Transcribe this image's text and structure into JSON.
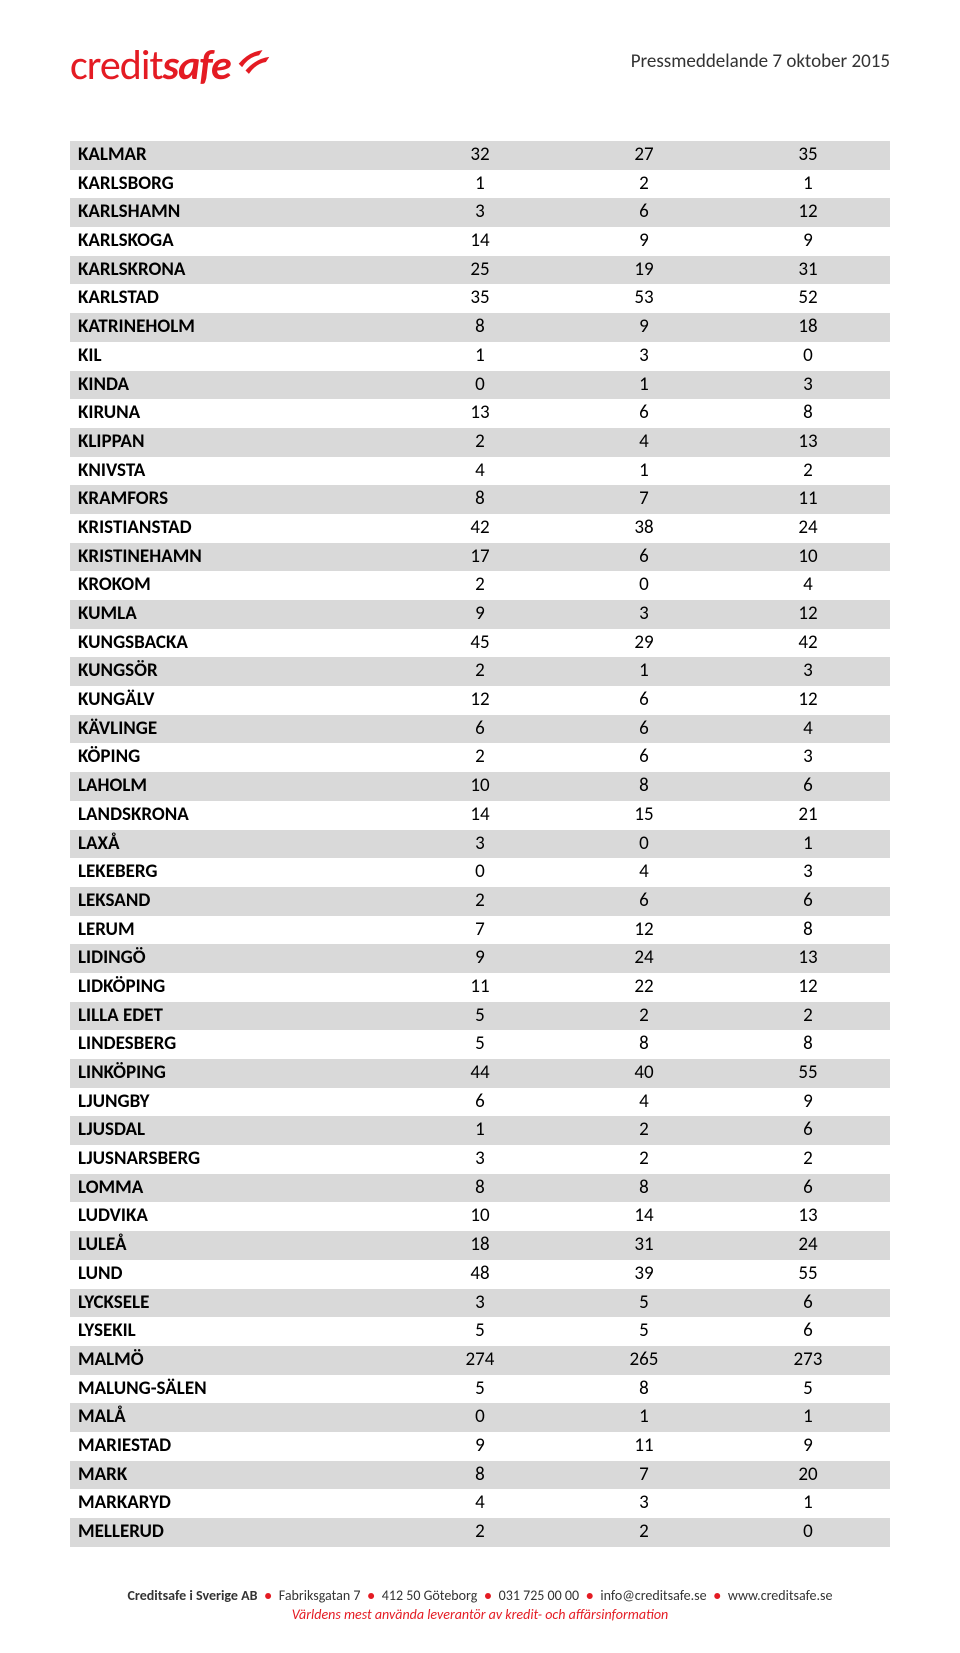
{
  "header": {
    "logo_part1": "credit",
    "logo_part2": "safe",
    "press_text": "Pressmeddelande 7 oktober 2015"
  },
  "table": {
    "row_odd_bg": "#d9d9d9",
    "row_even_bg": "#ffffff",
    "rows": [
      {
        "label": "KALMAR",
        "v1": "32",
        "v2": "27",
        "v3": "35"
      },
      {
        "label": "KARLSBORG",
        "v1": "1",
        "v2": "2",
        "v3": "1"
      },
      {
        "label": "KARLSHAMN",
        "v1": "3",
        "v2": "6",
        "v3": "12"
      },
      {
        "label": "KARLSKOGA",
        "v1": "14",
        "v2": "9",
        "v3": "9"
      },
      {
        "label": "KARLSKRONA",
        "v1": "25",
        "v2": "19",
        "v3": "31"
      },
      {
        "label": "KARLSTAD",
        "v1": "35",
        "v2": "53",
        "v3": "52"
      },
      {
        "label": "KATRINEHOLM",
        "v1": "8",
        "v2": "9",
        "v3": "18"
      },
      {
        "label": "KIL",
        "v1": "1",
        "v2": "3",
        "v3": "0"
      },
      {
        "label": "KINDA",
        "v1": "0",
        "v2": "1",
        "v3": "3"
      },
      {
        "label": "KIRUNA",
        "v1": "13",
        "v2": "6",
        "v3": "8"
      },
      {
        "label": "KLIPPAN",
        "v1": "2",
        "v2": "4",
        "v3": "13"
      },
      {
        "label": "KNIVSTA",
        "v1": "4",
        "v2": "1",
        "v3": "2"
      },
      {
        "label": "KRAMFORS",
        "v1": "8",
        "v2": "7",
        "v3": "11"
      },
      {
        "label": "KRISTIANSTAD",
        "v1": "42",
        "v2": "38",
        "v3": "24"
      },
      {
        "label": "KRISTINEHAMN",
        "v1": "17",
        "v2": "6",
        "v3": "10"
      },
      {
        "label": "KROKOM",
        "v1": "2",
        "v2": "0",
        "v3": "4"
      },
      {
        "label": "KUMLA",
        "v1": "9",
        "v2": "3",
        "v3": "12"
      },
      {
        "label": "KUNGSBACKA",
        "v1": "45",
        "v2": "29",
        "v3": "42"
      },
      {
        "label": "KUNGSÖR",
        "v1": "2",
        "v2": "1",
        "v3": "3"
      },
      {
        "label": "KUNGÄLV",
        "v1": "12",
        "v2": "6",
        "v3": "12"
      },
      {
        "label": "KÄVLINGE",
        "v1": "6",
        "v2": "6",
        "v3": "4"
      },
      {
        "label": "KÖPING",
        "v1": "2",
        "v2": "6",
        "v3": "3"
      },
      {
        "label": "LAHOLM",
        "v1": "10",
        "v2": "8",
        "v3": "6"
      },
      {
        "label": "LANDSKRONA",
        "v1": "14",
        "v2": "15",
        "v3": "21"
      },
      {
        "label": "LAXÅ",
        "v1": "3",
        "v2": "0",
        "v3": "1"
      },
      {
        "label": "LEKEBERG",
        "v1": "0",
        "v2": "4",
        "v3": "3"
      },
      {
        "label": "LEKSAND",
        "v1": "2",
        "v2": "6",
        "v3": "6"
      },
      {
        "label": "LERUM",
        "v1": "7",
        "v2": "12",
        "v3": "8"
      },
      {
        "label": "LIDINGÖ",
        "v1": "9",
        "v2": "24",
        "v3": "13"
      },
      {
        "label": "LIDKÖPING",
        "v1": "11",
        "v2": "22",
        "v3": "12"
      },
      {
        "label": "LILLA EDET",
        "v1": "5",
        "v2": "2",
        "v3": "2"
      },
      {
        "label": "LINDESBERG",
        "v1": "5",
        "v2": "8",
        "v3": "8"
      },
      {
        "label": "LINKÖPING",
        "v1": "44",
        "v2": "40",
        "v3": "55"
      },
      {
        "label": "LJUNGBY",
        "v1": "6",
        "v2": "4",
        "v3": "9"
      },
      {
        "label": "LJUSDAL",
        "v1": "1",
        "v2": "2",
        "v3": "6"
      },
      {
        "label": "LJUSNARSBERG",
        "v1": "3",
        "v2": "2",
        "v3": "2"
      },
      {
        "label": "LOMMA",
        "v1": "8",
        "v2": "8",
        "v3": "6"
      },
      {
        "label": "LUDVIKA",
        "v1": "10",
        "v2": "14",
        "v3": "13"
      },
      {
        "label": "LULEÅ",
        "v1": "18",
        "v2": "31",
        "v3": "24"
      },
      {
        "label": "LUND",
        "v1": "48",
        "v2": "39",
        "v3": "55"
      },
      {
        "label": "LYCKSELE",
        "v1": "3",
        "v2": "5",
        "v3": "6"
      },
      {
        "label": "LYSEKIL",
        "v1": "5",
        "v2": "5",
        "v3": "6"
      },
      {
        "label": "MALMÖ",
        "v1": "274",
        "v2": "265",
        "v3": "273"
      },
      {
        "label": "MALUNG-SÄLEN",
        "v1": "5",
        "v2": "8",
        "v3": "5"
      },
      {
        "label": "MALÅ",
        "v1": "0",
        "v2": "1",
        "v3": "1"
      },
      {
        "label": "MARIESTAD",
        "v1": "9",
        "v2": "11",
        "v3": "9"
      },
      {
        "label": "MARK",
        "v1": "8",
        "v2": "7",
        "v3": "20"
      },
      {
        "label": "MARKARYD",
        "v1": "4",
        "v2": "3",
        "v3": "1"
      },
      {
        "label": "MELLERUD",
        "v1": "2",
        "v2": "2",
        "v3": "0"
      }
    ]
  },
  "footer": {
    "company": "Creditsafe i Sverige AB",
    "address": "Fabriksgatan 7",
    "postal": "412 50 Göteborg",
    "phone": "031 725 00 00",
    "email": "info@creditsafe.se",
    "web": "www.creditsafe.se",
    "tagline": "Världens mest använda leverantör av kredit- och affärsinformation"
  }
}
